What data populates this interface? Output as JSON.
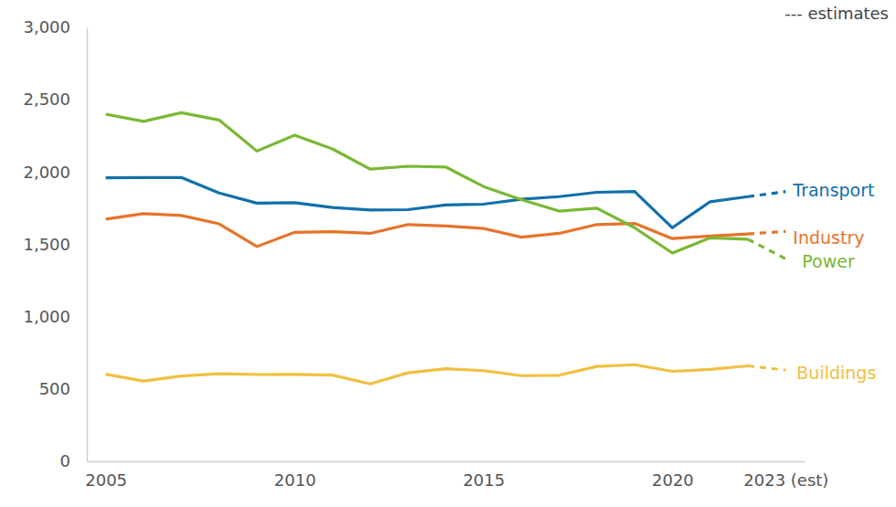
{
  "chart_data": {
    "type": "line",
    "estimate_label": "--- estimates",
    "x": [
      2005,
      2006,
      2007,
      2008,
      2009,
      2010,
      2011,
      2012,
      2013,
      2014,
      2015,
      2016,
      2017,
      2018,
      2019,
      2020,
      2021,
      2022,
      2023
    ],
    "xlim": [
      2004.5,
      2023.5
    ],
    "xticks": [
      2005,
      2010,
      2015,
      2020,
      {
        "value": 2023,
        "label": "2023 (est)"
      }
    ],
    "ylim": [
      0,
      3000
    ],
    "yticks": [
      0,
      500,
      {
        "value": 1000,
        "label": "1,000"
      },
      {
        "value": 1500,
        "label": "1,500"
      },
      {
        "value": 2000,
        "label": "2,000"
      },
      {
        "value": 2500,
        "label": "2,500"
      },
      {
        "value": 3000,
        "label": "3,000"
      }
    ],
    "grid": false,
    "series": [
      {
        "name": "Transport",
        "color": "#1170aa",
        "values": [
          1960,
          1962,
          1962,
          1855,
          1785,
          1788,
          1755,
          1738,
          1740,
          1772,
          1778,
          1812,
          1830,
          1860,
          1865,
          1615,
          1795,
          1830,
          null
        ],
        "estimates": [
          null,
          null,
          null,
          null,
          null,
          null,
          null,
          null,
          null,
          null,
          null,
          null,
          null,
          null,
          null,
          null,
          null,
          null,
          1865
        ]
      },
      {
        "name": "Industry",
        "color": "#e6732a",
        "values": [
          1675,
          1712,
          1700,
          1642,
          1485,
          1583,
          1588,
          1576,
          1637,
          1627,
          1610,
          1550,
          1576,
          1637,
          1645,
          1540,
          1558,
          1572,
          null
        ],
        "estimates": [
          null,
          null,
          null,
          null,
          null,
          null,
          null,
          null,
          null,
          null,
          null,
          null,
          null,
          null,
          null,
          null,
          null,
          null,
          1590
        ]
      },
      {
        "name": "Power",
        "color": "#7ab833",
        "values": [
          2400,
          2350,
          2410,
          2360,
          2145,
          2255,
          2160,
          2020,
          2040,
          2035,
          1900,
          1810,
          1730,
          1750,
          1615,
          1440,
          1545,
          1535,
          null
        ],
        "estimates": [
          null,
          null,
          null,
          null,
          null,
          null,
          null,
          null,
          null,
          null,
          null,
          null,
          null,
          null,
          null,
          null,
          null,
          null,
          1400
        ]
      },
      {
        "name": "Buildings",
        "color": "#f0c040",
        "values": [
          602,
          555,
          590,
          606,
          600,
          601,
          596,
          535,
          612,
          640,
          627,
          592,
          595,
          656,
          668,
          622,
          635,
          660,
          null
        ],
        "estimates": [
          null,
          null,
          null,
          null,
          null,
          null,
          null,
          null,
          null,
          null,
          null,
          null,
          null,
          null,
          null,
          null,
          null,
          null,
          630
        ]
      }
    ]
  }
}
